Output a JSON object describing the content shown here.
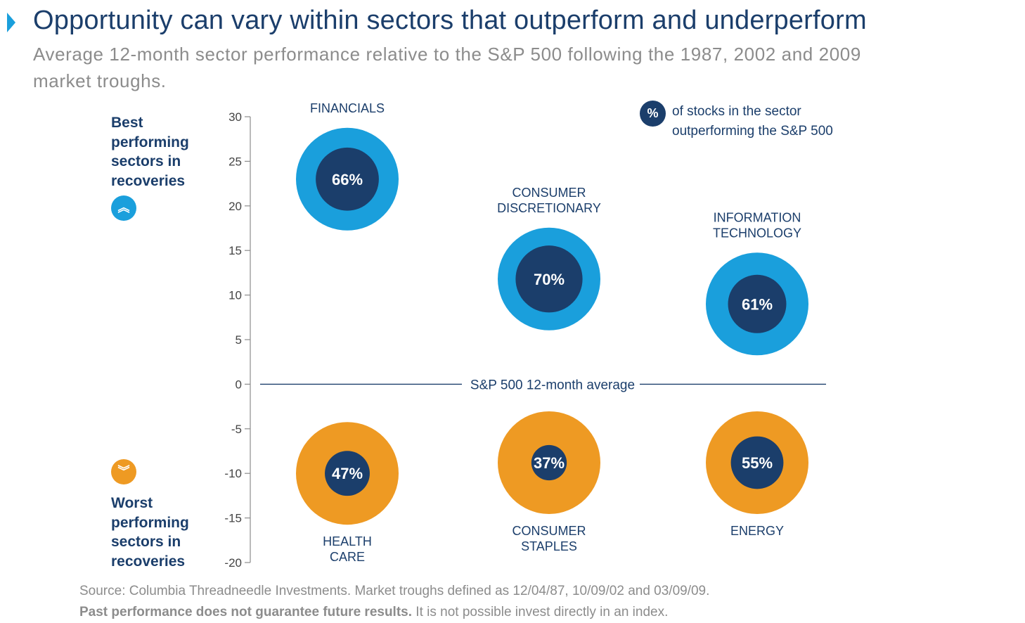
{
  "header": {
    "title": "Opportunity can vary within sectors that outperform and underperform",
    "subtitle": "Average 12-month sector performance relative to the S&P 500 following the 1987, 2002 and 2009 market troughs."
  },
  "side_labels": {
    "best": "Best performing sectors in recoveries",
    "worst": "Worst performing sectors in recoveries",
    "best_icon": "double-chevron-up-icon",
    "worst_icon": "double-chevron-down-icon",
    "best_glyph": "︽",
    "worst_glyph": "︾"
  },
  "legend": {
    "badge": "%",
    "text": "of stocks in the sector outperforming the S&P 500"
  },
  "colors": {
    "navy": "#1b3e6b",
    "outperform": "#1a9fdc",
    "underperform": "#ee9a23",
    "axis": "#8c8c8c"
  },
  "chart_data": {
    "type": "scatter",
    "ylim": [
      -20,
      30
    ],
    "yticks": [
      30,
      25,
      20,
      15,
      10,
      5,
      0,
      -5,
      -10,
      -15,
      -20
    ],
    "reference_line": {
      "y": 0,
      "label": "S&P 500 12-month average"
    },
    "points": [
      {
        "sector": "FINANCIALS",
        "value": 23,
        "pct": "66%",
        "group": "best",
        "column": 1
      },
      {
        "sector": "CONSUMER DISCRETIONARY",
        "value": 11.8,
        "pct": "70%",
        "group": "best",
        "column": 2
      },
      {
        "sector": "INFORMATION TECHNOLOGY",
        "value": 9,
        "pct": "61%",
        "group": "best",
        "column": 3
      },
      {
        "sector": "HEALTH CARE",
        "value": -10,
        "pct": "47%",
        "group": "worst",
        "column": 1
      },
      {
        "sector": "CONSUMER STAPLES",
        "value": -8.8,
        "pct": "37%",
        "group": "worst",
        "column": 2
      },
      {
        "sector": "ENERGY",
        "value": -8.8,
        "pct": "55%",
        "group": "worst",
        "column": 3
      }
    ]
  },
  "footer": {
    "source": "Source: Columbia Threadneedle Investments. Market troughs defined as 12/04/87, 10/09/02 and 03/09/09.",
    "disclaimer_bold": "Past performance does not guarantee future results.",
    "disclaimer_rest": " It is not possible invest directly in an index."
  }
}
